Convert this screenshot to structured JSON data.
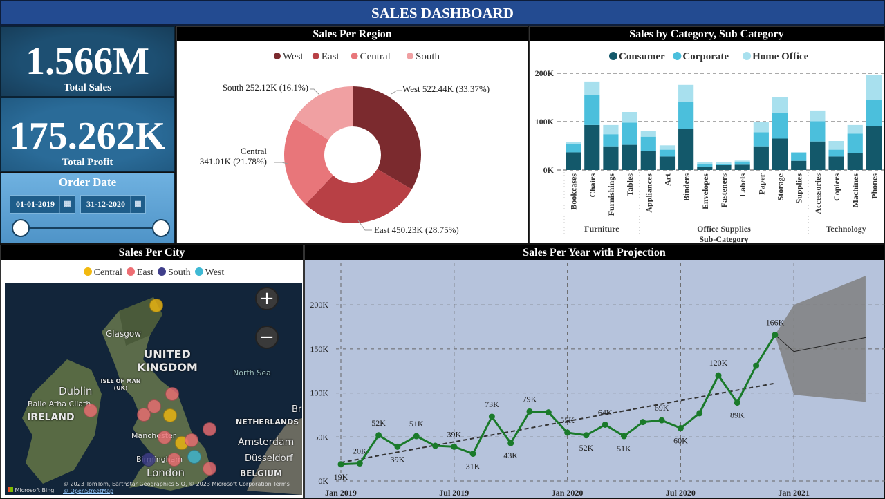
{
  "title": "SALES DASHBOARD",
  "kpis": {
    "total_sales": {
      "value": "1.566M",
      "label": "Total Sales"
    },
    "total_profit": {
      "value": "175.262K",
      "label": "Total Profit"
    }
  },
  "order_date": {
    "label": "Order Date",
    "start": "01-01-2019",
    "end": "31-12-2020",
    "icon": "calendar-icon",
    "range_fraction": [
      0,
      1
    ]
  },
  "colors": {
    "header": "#234b91",
    "west": "#7b2a2e",
    "east": "#b84045",
    "central": "#e8767a",
    "south": "#f0a0a2",
    "consumer": "#13586a",
    "corporate": "#4bbfdc",
    "home_office": "#a8e0ee",
    "line": "#1a7a2a"
  },
  "chart_data": [
    {
      "type": "pie",
      "title": "Sales Per Region",
      "donut": true,
      "legend_position": "top",
      "slices": [
        {
          "name": "West",
          "value": 522.44,
          "percent": 33.37,
          "label": "West 522.44K (33.37%)"
        },
        {
          "name": "East",
          "value": 450.23,
          "percent": 28.75,
          "label": "East 450.23K (28.75%)"
        },
        {
          "name": "Central",
          "value": 341.01,
          "percent": 21.78,
          "label": "341.01K (21.78%)",
          "label_title": "Central"
        },
        {
          "name": "South",
          "value": 252.12,
          "percent": 16.1,
          "label": "South 252.12K (16.1%)"
        }
      ]
    },
    {
      "type": "bar",
      "stacked": true,
      "title": "Sales by Category, Sub Category",
      "xlabel": "Sub-Category",
      "ylabel": "",
      "ylim": [
        0,
        200000
      ],
      "yticks": [
        "0K",
        "100K",
        "200K"
      ],
      "grid": true,
      "legend_position": "top",
      "groups": [
        {
          "name": "Furniture",
          "categories": [
            "Bookcases",
            "Chairs",
            "Furnishings",
            "Tables"
          ]
        },
        {
          "name": "Office Supplies",
          "categories": [
            "Appliances",
            "Art",
            "Binders",
            "Envelopes",
            "Fasteners",
            "Labels",
            "Paper",
            "Storage",
            "Supplies"
          ]
        },
        {
          "name": "Technology",
          "categories": [
            "Accessories",
            "Copiers",
            "Machines",
            "Phones"
          ]
        }
      ],
      "categories": [
        "Bookcases",
        "Chairs",
        "Furnishings",
        "Tables",
        "Appliances",
        "Art",
        "Binders",
        "Envelopes",
        "Fasteners",
        "Labels",
        "Paper",
        "Storage",
        "Supplies",
        "Accessories",
        "Copiers",
        "Machines",
        "Phones"
      ],
      "series": [
        {
          "name": "Consumer",
          "values": [
            36500,
            93000,
            49000,
            52000,
            40000,
            28000,
            85000,
            7000,
            10000,
            11000,
            49000,
            65000,
            19000,
            59000,
            28000,
            35000,
            90000
          ]
        },
        {
          "name": "Corporate",
          "values": [
            16500,
            62000,
            25000,
            46000,
            29000,
            14000,
            55000,
            5000,
            3000,
            6000,
            29000,
            53000,
            16000,
            42000,
            14000,
            40000,
            55000
          ]
        },
        {
          "name": "Home Office",
          "values": [
            5000,
            28000,
            19000,
            22000,
            12000,
            9000,
            36000,
            5000,
            3000,
            2500,
            22000,
            33000,
            2000,
            22000,
            18000,
            18000,
            52000
          ]
        }
      ]
    },
    {
      "type": "line",
      "title": "Sales Per Year with Projection",
      "ylim": [
        0,
        210000
      ],
      "yticks": [
        "0K",
        "50K",
        "100K",
        "150K",
        "200K"
      ],
      "xticks": [
        "Jan 2019",
        "Jul 2019",
        "Jan 2020",
        "Jul 2020",
        "Jan 2021"
      ],
      "grid": true,
      "x": [
        "2019-01",
        "2019-02",
        "2019-03",
        "2019-04",
        "2019-05",
        "2019-06",
        "2019-07",
        "2019-08",
        "2019-09",
        "2019-10",
        "2019-11",
        "2019-12",
        "2020-01",
        "2020-02",
        "2020-03",
        "2020-04",
        "2020-05",
        "2020-06",
        "2020-07",
        "2020-08",
        "2020-09",
        "2020-10",
        "2020-11",
        "2020-12"
      ],
      "values": [
        19000,
        20000,
        52000,
        39000,
        51000,
        40000,
        39000,
        31000,
        73000,
        43000,
        79000,
        78000,
        55000,
        52000,
        64000,
        51000,
        67000,
        69000,
        60000,
        77000,
        120000,
        89000,
        131000,
        166000
      ],
      "labels": [
        "19K",
        "20K",
        "52K",
        "39K",
        "51K",
        null,
        "39K",
        "31K",
        "73K",
        "43K",
        "79K",
        null,
        "55K",
        "52K",
        "64K",
        "51K",
        null,
        "69K",
        "60K",
        null,
        "120K",
        "89K",
        null,
        "166K"
      ],
      "trend": {
        "start": 21000,
        "end": 111000
      },
      "forecast": {
        "x": [
          "2020-12",
          "2021-01",
          "2021-04"
        ],
        "values": [
          166000,
          147000,
          163000
        ],
        "upper": [
          166000,
          200000,
          233000
        ],
        "lower": [
          166000,
          98000,
          90000
        ]
      }
    }
  ],
  "city_map": {
    "title": "Sales Per City",
    "legend": [
      {
        "name": "Central",
        "color": "#f2b90f"
      },
      {
        "name": "East",
        "color": "#ee6e73"
      },
      {
        "name": "South",
        "color": "#3f3e8a"
      },
      {
        "name": "West",
        "color": "#3fb9d4"
      }
    ],
    "labels": {
      "uk": "UNITED KINGDOM",
      "glasgow": "Glasgow",
      "isle_of_man": "ISLE OF MAN (UK)",
      "dublin": "Dublin",
      "baile": "Baile Atha Cliath",
      "ireland": "IRELAND",
      "manchester": "Manchester",
      "birmingham": "Birmingham",
      "london": "London",
      "north_sea": "North Sea",
      "netherlands": "NETHERLANDS",
      "amsterdam": "Amsterdam",
      "dusseldorf": "Düsseldorf",
      "belgium": "BELGIUM",
      "br": "Br"
    },
    "zoom_in": "+",
    "zoom_out": "−",
    "bing": "Microsoft Bing",
    "copyright": "© 2023 TomTom, Earthstar Geographics SIO, © 2023 Microsoft Corporation Terms",
    "osm": "© OpenStreetMap"
  }
}
